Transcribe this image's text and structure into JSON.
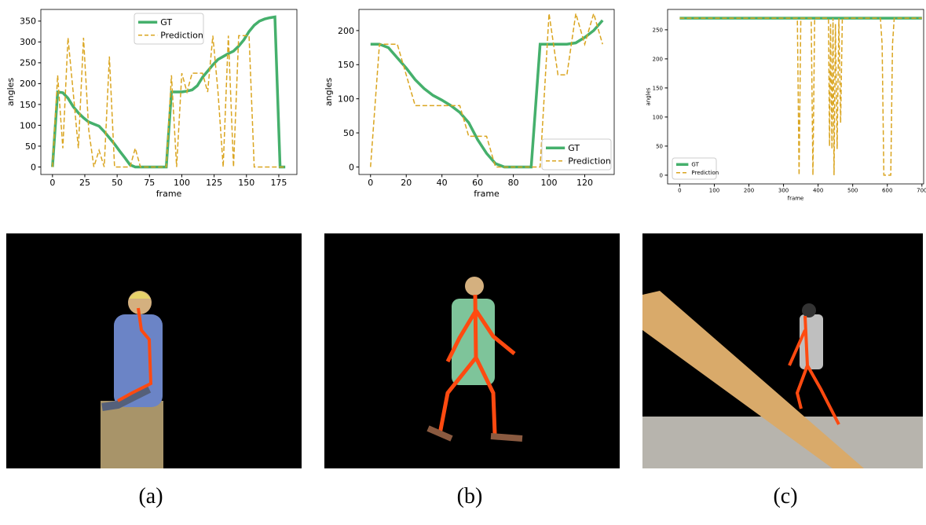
{
  "chart_data": [
    {
      "type": "line",
      "xlabel": "frame",
      "ylabel": "angles",
      "legend": "upper center",
      "xlim": [
        -9,
        189
      ],
      "xticks": [
        0,
        25,
        50,
        75,
        100,
        125,
        150,
        175
      ],
      "ylim": [
        -18,
        378
      ],
      "yticks": [
        0,
        50,
        100,
        150,
        200,
        250,
        300,
        350
      ],
      "x": [
        0,
        4,
        8,
        12,
        16,
        20,
        24,
        28,
        32,
        36,
        40,
        44,
        48,
        52,
        56,
        60,
        64,
        68,
        72,
        76,
        80,
        84,
        88,
        92,
        96,
        100,
        104,
        108,
        112,
        116,
        120,
        124,
        128,
        132,
        136,
        140,
        144,
        148,
        152,
        156,
        160,
        164,
        168,
        172,
        176,
        180
      ],
      "series": [
        {
          "name": "GT",
          "color": "#45b06c",
          "style": "solid",
          "values": [
            0,
            180,
            178,
            165,
            145,
            130,
            118,
            108,
            103,
            98,
            85,
            70,
            55,
            38,
            22,
            5,
            0,
            0,
            0,
            0,
            0,
            0,
            0,
            180,
            180,
            180,
            182,
            185,
            195,
            215,
            230,
            245,
            258,
            265,
            272,
            278,
            290,
            305,
            325,
            340,
            350,
            355,
            358,
            360,
            0,
            0
          ]
        },
        {
          "name": "Prediction",
          "color": "#daa520",
          "style": "dashed",
          "values": [
            0,
            220,
            45,
            310,
            180,
            45,
            310,
            90,
            0,
            40,
            0,
            265,
            0,
            0,
            0,
            0,
            45,
            0,
            0,
            0,
            0,
            0,
            0,
            220,
            0,
            225,
            180,
            225,
            225,
            225,
            180,
            315,
            180,
            0,
            315,
            0,
            315,
            315,
            315,
            0,
            0,
            0,
            0,
            0,
            0,
            0
          ]
        }
      ]
    },
    {
      "type": "line",
      "xlabel": "frame",
      "ylabel": "angles",
      "legend": "lower right",
      "xlim": [
        -6.5,
        136.5
      ],
      "xticks": [
        0,
        20,
        40,
        60,
        80,
        100,
        120
      ],
      "ylim": [
        -11,
        231
      ],
      "yticks": [
        0,
        50,
        100,
        150,
        200
      ],
      "x": [
        0,
        5,
        10,
        15,
        20,
        25,
        30,
        35,
        40,
        45,
        50,
        55,
        60,
        65,
        70,
        75,
        80,
        85,
        90,
        95,
        100,
        105,
        110,
        115,
        120,
        125,
        130
      ],
      "series": [
        {
          "name": "GT",
          "color": "#45b06c",
          "style": "solid",
          "values": [
            180,
            180,
            175,
            160,
            145,
            128,
            115,
            105,
            98,
            90,
            80,
            65,
            40,
            20,
            5,
            0,
            0,
            0,
            0,
            180,
            180,
            180,
            180,
            182,
            190,
            200,
            215
          ]
        },
        {
          "name": "Prediction",
          "color": "#daa520",
          "style": "dashed",
          "values": [
            0,
            180,
            180,
            180,
            135,
            90,
            90,
            90,
            90,
            90,
            90,
            45,
            45,
            45,
            0,
            0,
            0,
            0,
            0,
            0,
            225,
            135,
            135,
            225,
            180,
            225,
            180
          ]
        }
      ]
    },
    {
      "type": "line",
      "xlabel": "frame",
      "ylabel": "angles",
      "legend": "lower left",
      "xlim": [
        -35,
        705
      ],
      "xticks": [
        0,
        100,
        200,
        300,
        400,
        500,
        600,
        700
      ],
      "ylim": [
        -15,
        285
      ],
      "yticks": [
        0,
        50,
        100,
        150,
        200,
        250
      ],
      "x": [
        0,
        340,
        345,
        350,
        355,
        380,
        385,
        390,
        395,
        430,
        433,
        436,
        440,
        443,
        446,
        450,
        455,
        460,
        465,
        470,
        580,
        585,
        590,
        595,
        610,
        615,
        620,
        625,
        700
      ],
      "series": [
        {
          "name": "GT",
          "color": "#45b06c",
          "style": "solid",
          "values": [
            270,
            270,
            270,
            270,
            270,
            270,
            270,
            270,
            270,
            270,
            270,
            270,
            270,
            270,
            270,
            270,
            270,
            270,
            270,
            270,
            270,
            270,
            270,
            270,
            270,
            270,
            270,
            270,
            270
          ]
        },
        {
          "name": "Prediction",
          "color": "#daa520",
          "style": "dashed",
          "values": [
            270,
            270,
            0,
            270,
            270,
            270,
            0,
            270,
            270,
            270,
            50,
            260,
            45,
            270,
            0,
            260,
            45,
            270,
            90,
            270,
            270,
            225,
            0,
            0,
            0,
            225,
            270,
            270,
            270
          ]
        }
      ]
    }
  ],
  "captions": [
    "(a)",
    "(b)",
    "(c)"
  ]
}
